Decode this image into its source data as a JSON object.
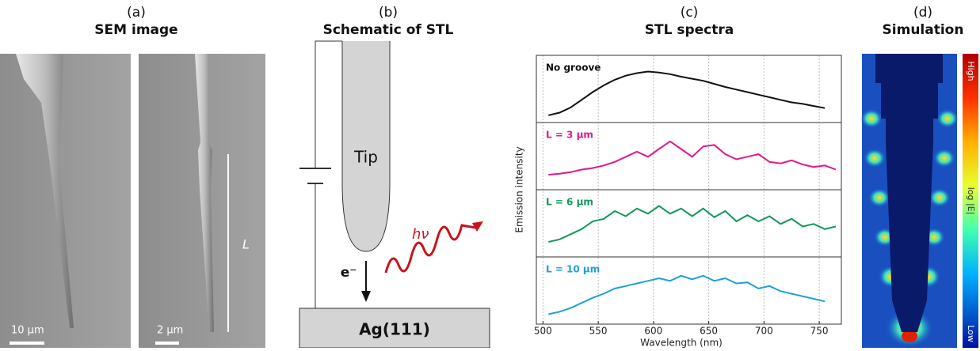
{
  "panels": {
    "a": {
      "label": "(a)",
      "title": "SEM image",
      "scale1": "10 µm",
      "scale2": "2 µm",
      "length": "L"
    },
    "b": {
      "label": "(b)",
      "title": "Schematic of STL",
      "tip": "Tip",
      "photon": "hν",
      "electron": "e⁻",
      "sample": "Ag(111)"
    },
    "d": {
      "label": "(d)",
      "title": "Simulation",
      "high": "High",
      "mid": "log |E|",
      "low": "Low"
    }
  },
  "chart_data": {
    "type": "line",
    "label": "(c)",
    "title": "STL spectra",
    "xlabel": "Wavelength (nm)",
    "ylabel": "Emission intensity",
    "x": [
      505,
      515,
      525,
      535,
      545,
      555,
      565,
      575,
      585,
      595,
      605,
      615,
      625,
      635,
      645,
      655,
      665,
      675,
      685,
      695,
      705,
      715,
      725,
      735,
      745,
      755,
      765
    ],
    "xlim": [
      494,
      770
    ],
    "xticks": [
      500,
      550,
      600,
      650,
      700,
      750
    ],
    "ylim": [
      0,
      1
    ],
    "grid": true,
    "series": [
      {
        "name": "No groove",
        "color": "#111111",
        "values": [
          0.05,
          0.1,
          0.2,
          0.35,
          0.5,
          0.63,
          0.74,
          0.82,
          0.87,
          0.9,
          0.88,
          0.85,
          0.8,
          0.76,
          0.72,
          0.66,
          0.6,
          0.55,
          0.5,
          0.45,
          0.4,
          0.35,
          0.3,
          0.27,
          0.23,
          0.19,
          null
        ]
      },
      {
        "name": "L = 3 µm",
        "color": "#e0198c",
        "values": [
          0.2,
          0.22,
          0.25,
          0.3,
          0.33,
          0.38,
          0.45,
          0.55,
          0.65,
          0.55,
          0.7,
          0.85,
          0.7,
          0.55,
          0.75,
          0.78,
          0.6,
          0.5,
          0.55,
          0.6,
          0.45,
          0.42,
          0.48,
          0.4,
          0.35,
          0.38,
          0.3
        ]
      },
      {
        "name": "L = 6 µm",
        "color": "#12995a",
        "values": [
          0.2,
          0.25,
          0.35,
          0.45,
          0.6,
          0.65,
          0.8,
          0.7,
          0.85,
          0.75,
          0.9,
          0.75,
          0.85,
          0.7,
          0.85,
          0.68,
          0.8,
          0.6,
          0.72,
          0.6,
          0.7,
          0.55,
          0.65,
          0.5,
          0.55,
          0.45,
          0.5
        ]
      },
      {
        "name": "L = 10 µm",
        "color": "#1ea0d8",
        "values": [
          0.1,
          0.15,
          0.22,
          0.32,
          0.42,
          0.5,
          0.6,
          0.65,
          0.7,
          0.75,
          0.8,
          0.75,
          0.85,
          0.78,
          0.85,
          0.75,
          0.8,
          0.7,
          0.72,
          0.6,
          0.65,
          0.55,
          0.5,
          0.45,
          0.4,
          0.35,
          null
        ]
      }
    ]
  }
}
